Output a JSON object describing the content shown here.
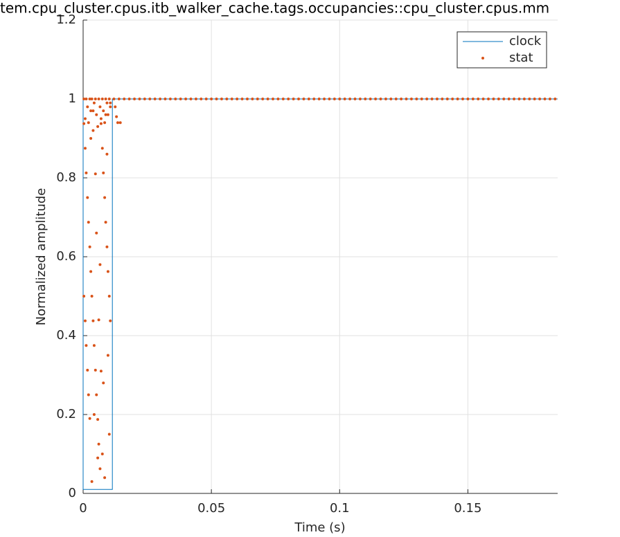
{
  "chart_data": {
    "type": "scatter",
    "title": "tem.cpu_cluster.cpus.itb_walker_cache.tags.occupancies::cpu_cluster.cpus.mm",
    "xlabel": "Time (s)",
    "ylabel": "Normalized amplitude",
    "xlim": [
      0,
      0.185
    ],
    "ylim": [
      0,
      1.2
    ],
    "xticks": [
      0,
      0.05,
      0.1,
      0.15
    ],
    "yticks": [
      0,
      0.2,
      0.4,
      0.6,
      0.8,
      1,
      1.2
    ],
    "grid": true,
    "legend": "upper right",
    "series": [
      {
        "name": "clock",
        "color": "#0072bd",
        "style": "line",
        "x": [
          0,
          0,
          0.0114,
          0.0114,
          0.185
        ],
        "values": [
          1,
          0.01,
          0.01,
          1,
          1
        ]
      },
      {
        "name": "stat",
        "color": "#d95319",
        "style": "points",
        "x": [
          0.0003,
          0.0008,
          0.0012,
          0.0017,
          0.0021,
          0.0026,
          0.003,
          0.0034,
          0.0039,
          0.0043,
          0.0048,
          0.0052,
          0.0057,
          0.0061,
          0.0066,
          0.007,
          0.0075,
          0.0079,
          0.0084,
          0.0088,
          0.0093,
          0.0097,
          0.0102,
          0.0106,
          0.0003,
          0.0008,
          0.0012,
          0.0017,
          0.0021,
          0.0026,
          0.003,
          0.0034,
          0.0039,
          0.0043,
          0.0048,
          0.0052,
          0.0057,
          0.0061,
          0.0066,
          0.007,
          0.0075,
          0.0079,
          0.0084,
          0.0088,
          0.0093,
          0.0097,
          0.0102,
          0.0106,
          0.0003,
          0.0008,
          0.0012,
          0.0017,
          0.0021,
          0.0026,
          0.003,
          0.0034,
          0.0039,
          0.0043,
          0.0048,
          0.0052,
          0.0057,
          0.0061,
          0.0066,
          0.007,
          0.0075,
          0.0079,
          0.0084,
          0.0088,
          0.0093,
          0.0097,
          0.0102,
          0.0106,
          0.0125,
          0.0135,
          0.0145,
          0.013,
          0.012,
          0.014,
          0.016,
          0.018,
          0.02,
          0.022,
          0.024,
          0.026,
          0.028,
          0.03,
          0.032,
          0.034,
          0.036,
          0.038,
          0.04,
          0.042,
          0.044,
          0.046,
          0.048,
          0.05,
          0.052,
          0.054,
          0.056,
          0.058,
          0.06,
          0.062,
          0.064,
          0.066,
          0.068,
          0.07,
          0.072,
          0.074,
          0.076,
          0.078,
          0.08,
          0.082,
          0.084,
          0.086,
          0.088,
          0.09,
          0.092,
          0.094,
          0.096,
          0.098,
          0.1,
          0.102,
          0.104,
          0.106,
          0.108,
          0.11,
          0.112,
          0.114,
          0.116,
          0.118,
          0.12,
          0.122,
          0.124,
          0.126,
          0.128,
          0.13,
          0.132,
          0.134,
          0.136,
          0.138,
          0.14,
          0.142,
          0.144,
          0.146,
          0.148,
          0.15,
          0.152,
          0.154,
          0.156,
          0.158,
          0.16,
          0.162,
          0.164,
          0.166,
          0.168,
          0.17,
          0.172,
          0.174,
          0.176,
          0.178,
          0.18,
          0.182,
          0.184
        ],
        "values": [
          0.9375,
          0.875,
          0.8125,
          0.75,
          0.6875,
          0.625,
          0.5625,
          0.5,
          0.4375,
          0.375,
          0.3125,
          0.25,
          0.1875,
          0.125,
          0.0625,
          0.9375,
          0.875,
          0.8125,
          0.75,
          0.6875,
          0.625,
          0.5625,
          0.5,
          0.4375,
          0.5,
          0.4375,
          0.375,
          0.3125,
          0.25,
          0.19,
          0.9,
          0.03,
          0.97,
          0.2,
          0.81,
          0.66,
          0.09,
          0.44,
          0.58,
          0.31,
          0.1,
          0.28,
          0.04,
          0.96,
          0.86,
          0.35,
          0.15,
          0.99,
          1,
          0.95,
          1,
          0.98,
          0.94,
          1,
          0.97,
          1,
          0.92,
          0.99,
          1,
          0.96,
          0.93,
          1,
          0.98,
          0.95,
          1,
          0.97,
          0.94,
          1,
          0.99,
          0.96,
          1,
          0.98,
          0.98,
          0.94,
          0.94,
          0.955,
          1,
          1,
          1,
          1,
          1,
          1,
          1,
          1,
          1,
          1,
          1,
          1,
          1,
          1,
          1,
          1,
          1,
          1,
          1,
          1,
          1,
          1,
          1,
          1,
          1,
          1,
          1,
          1,
          1,
          1,
          1,
          1,
          1,
          1,
          1,
          1,
          1,
          1,
          1,
          1,
          1,
          1,
          1,
          1,
          1,
          1,
          1,
          1,
          1,
          1,
          1,
          1,
          1,
          1,
          1,
          1,
          1,
          1,
          1,
          1,
          1,
          1,
          1,
          1,
          1,
          1,
          1,
          1,
          1,
          1,
          1,
          1,
          1,
          1,
          1,
          1,
          1,
          1,
          1,
          1,
          1,
          1,
          1,
          1,
          1,
          1,
          1
        ]
      }
    ]
  }
}
